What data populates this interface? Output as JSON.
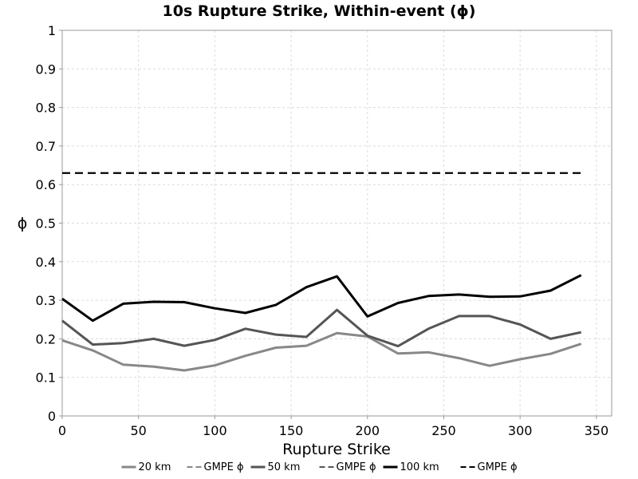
{
  "chart_data": {
    "type": "line",
    "title": "10s Rupture Strike, Within-event (ϕ)",
    "xlabel": "Rupture Strike",
    "ylabel": "ϕ",
    "xlim": [
      0,
      360
    ],
    "ylim": [
      0,
      1
    ],
    "xticks": [
      0,
      50,
      100,
      150,
      200,
      250,
      300,
      350
    ],
    "yticks": [
      0,
      0.1,
      0.2,
      0.3,
      0.4,
      0.5,
      0.6,
      0.7,
      0.8,
      0.9,
      1
    ],
    "ytick_labels": [
      "0",
      "0.1",
      "0.2",
      "0.3",
      "0.4",
      "0.5",
      "0.6",
      "0.7",
      "0.8",
      "0.9",
      "1"
    ],
    "grid": true,
    "legend_position": "bottom",
    "x": [
      0,
      20,
      40,
      60,
      80,
      100,
      120,
      140,
      160,
      180,
      200,
      220,
      240,
      260,
      280,
      300,
      320,
      340
    ],
    "series": [
      {
        "name": "20 km",
        "color": "#888888",
        "dash": "solid",
        "values": [
          0.196,
          0.17,
          0.133,
          0.128,
          0.118,
          0.131,
          0.156,
          0.177,
          0.182,
          0.215,
          0.206,
          0.162,
          0.165,
          0.15,
          0.13,
          0.147,
          0.161,
          0.187
        ]
      },
      {
        "name": "GMPE ϕ",
        "color": "#888888",
        "dash": "dashed",
        "values": [
          0.63,
          0.63,
          0.63,
          0.63,
          0.63,
          0.63,
          0.63,
          0.63,
          0.63,
          0.63,
          0.63,
          0.63,
          0.63,
          0.63,
          0.63,
          0.63,
          0.63,
          0.63
        ]
      },
      {
        "name": "50 km",
        "color": "#555555",
        "dash": "solid",
        "values": [
          0.247,
          0.185,
          0.189,
          0.2,
          0.182,
          0.197,
          0.226,
          0.211,
          0.205,
          0.275,
          0.208,
          0.181,
          0.226,
          0.259,
          0.259,
          0.237,
          0.2,
          0.217
        ]
      },
      {
        "name": "GMPE ϕ",
        "color": "#555555",
        "dash": "dashed",
        "values": [
          0.63,
          0.63,
          0.63,
          0.63,
          0.63,
          0.63,
          0.63,
          0.63,
          0.63,
          0.63,
          0.63,
          0.63,
          0.63,
          0.63,
          0.63,
          0.63,
          0.63,
          0.63
        ]
      },
      {
        "name": "100 km",
        "color": "#000000",
        "dash": "solid",
        "values": [
          0.304,
          0.247,
          0.291,
          0.296,
          0.295,
          0.279,
          0.267,
          0.288,
          0.334,
          0.362,
          0.258,
          0.293,
          0.311,
          0.315,
          0.309,
          0.31,
          0.325,
          0.365
        ]
      },
      {
        "name": "GMPE ϕ",
        "color": "#000000",
        "dash": "dashed",
        "values": [
          0.63,
          0.63,
          0.63,
          0.63,
          0.63,
          0.63,
          0.63,
          0.63,
          0.63,
          0.63,
          0.63,
          0.63,
          0.63,
          0.63,
          0.63,
          0.63,
          0.63,
          0.63
        ]
      }
    ]
  }
}
